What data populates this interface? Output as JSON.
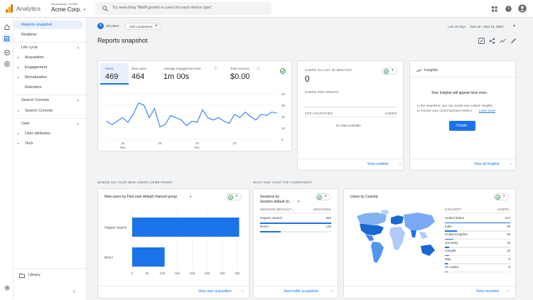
{
  "app": {
    "name": "Analytics",
    "account_path": "All accounts > ACME",
    "property": "Acme Corp.",
    "search_placeholder": "Try searching \"MoM growth in users for each device type\""
  },
  "sidebar": {
    "items": [
      {
        "label": "Reports snapshot",
        "selected": true
      },
      {
        "label": "Realtime"
      }
    ],
    "lifecycle_title": "Life cycle",
    "lifecycle": [
      "Acquisition",
      "Engagement",
      "Monetization",
      "Retention"
    ],
    "search_console_title": "Search Console",
    "search_console": [
      "Search Console"
    ],
    "user_title": "User",
    "user": [
      "User attributes",
      "Tech"
    ],
    "library": "Library"
  },
  "header": {
    "all_users": "All Users",
    "add_comparison": "Add comparison",
    "date_label": "Last 28 days",
    "date_range": "Nov 16 – Dec 13, 2023",
    "page_title": "Reports snapshot"
  },
  "metrics": [
    {
      "label": "Users",
      "value": "469"
    },
    {
      "label": "New users",
      "value": "464"
    },
    {
      "label": "Average engagement time",
      "value": "1m 00s"
    },
    {
      "label": "Total revenue",
      "value": "$0.00"
    }
  ],
  "chart_data": {
    "type": "line",
    "series": [
      {
        "values": [
          16,
          13,
          16,
          19,
          15,
          22,
          32,
          30,
          19,
          27,
          11,
          13,
          21,
          19,
          17,
          12,
          16,
          15,
          26,
          19,
          17,
          19,
          16,
          14,
          22,
          19,
          24,
          20,
          17,
          22,
          21,
          24,
          23
        ]
      }
    ],
    "ylim": [
      0,
      40
    ],
    "y_ticks": [
      "40",
      "30",
      "20",
      "10",
      "0"
    ],
    "x_ticks": [
      {
        "day": "19",
        "month": "Nov"
      },
      {
        "day": "26",
        "month": ""
      },
      {
        "day": "03",
        "month": "Dec"
      },
      {
        "day": "10",
        "month": ""
      }
    ]
  },
  "realtime": {
    "title": "USERS IN LAST 30 MINUTES",
    "value": "0",
    "per_minute": "USERS PER MINUTE",
    "col_countries": "TOP COUNTRIES",
    "col_users": "USERS",
    "empty": "No data available",
    "link": "View realtime"
  },
  "insights": {
    "title": "Insights",
    "heading": "Your Insights will appear here soon.",
    "body_1": "In the meantime, you can create new custom insights",
    "body_2": "to monitor your most important metrics.",
    "learn_more": "Learn more",
    "create": "Create",
    "link": "View all insights"
  },
  "new_users": {
    "section": "WHERE DO YOUR NEW USERS COME FROM?",
    "title": "New users by First user default channel group",
    "categories": [
      "Organic Search",
      "Direct"
    ],
    "values": [
      356,
      108
    ],
    "x_ticks": [
      "0",
      "50",
      "100",
      "150",
      "200",
      "250",
      "300",
      "350"
    ],
    "xlim": [
      0,
      350
    ],
    "link": "View user acquisition"
  },
  "campaigns": {
    "section": "WHAT ARE YOUR TOP CAMPAIGNS?",
    "title_1": "Sessions by",
    "title_2": "Session default ch…",
    "col_1": "SESSION DEFAULT…",
    "col_2": "SESSIONS",
    "rows": [
      {
        "label": "Organic Search",
        "value": "452",
        "share": 1.0
      },
      {
        "label": "Direct",
        "value": "129",
        "share": 0.29
      }
    ],
    "link": "View traffic acquisition"
  },
  "countries": {
    "title": "Users by Country",
    "col_1": "COUNTRY",
    "col_2": "USERS",
    "rows": [
      {
        "label": "United States",
        "value": "217",
        "share": 1.0
      },
      {
        "label": "India",
        "value": "39",
        "share": 0.18
      },
      {
        "label": "United Kingdom",
        "value": "29",
        "share": 0.13
      },
      {
        "label": "Germany",
        "value": "16",
        "share": 0.07
      },
      {
        "label": "Canada",
        "value": "15",
        "share": 0.07
      },
      {
        "label": "Italy",
        "value": "9",
        "share": 0.04
      },
      {
        "label": "Sri Lanka",
        "value": "8",
        "share": 0.04
      }
    ],
    "link": "View countries"
  },
  "colors": {
    "accent": "#1a73e8",
    "bar": "#1a73e8",
    "line": "#4285f4"
  }
}
